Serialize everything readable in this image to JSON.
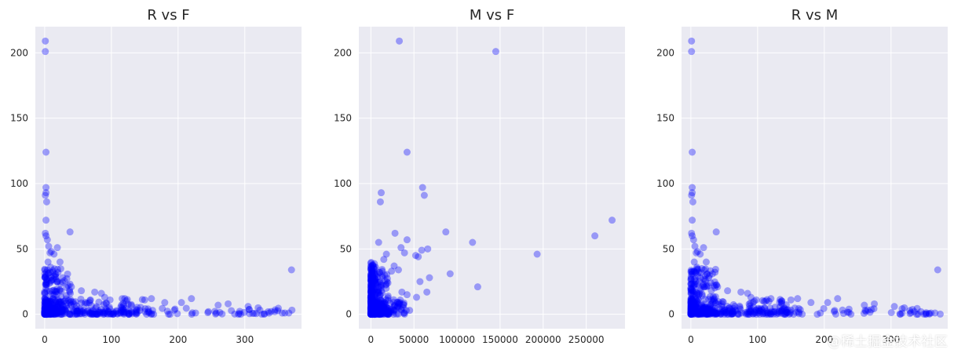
{
  "colors": {
    "plot_bg": "#eaeaf2",
    "grid": "#ffffff",
    "marker": "#0000ff",
    "text": "#262626"
  },
  "watermark": "@稀土掘金技术社区",
  "chart_data": [
    {
      "type": "scatter",
      "title": "R vs F",
      "xlabel": "",
      "ylabel": "",
      "xlim": [
        -14,
        385
      ],
      "ylim": [
        -11,
        220
      ],
      "xticks": [
        0,
        100,
        200,
        300
      ],
      "yticks": [
        0,
        50,
        100,
        150,
        200
      ],
      "grid": true,
      "points": [
        [
          1,
          209
        ],
        [
          1,
          201
        ],
        [
          2,
          124
        ],
        [
          2,
          97
        ],
        [
          2,
          93
        ],
        [
          1,
          91
        ],
        [
          3,
          86
        ],
        [
          2,
          72
        ],
        [
          1,
          62
        ],
        [
          2,
          60
        ],
        [
          4,
          57
        ],
        [
          6,
          52
        ],
        [
          38,
          63
        ],
        [
          19,
          51
        ],
        [
          10,
          48
        ],
        [
          14,
          46
        ],
        [
          8,
          47
        ],
        [
          23,
          40
        ],
        [
          5,
          40
        ],
        [
          9,
          36
        ],
        [
          12,
          32
        ],
        [
          27,
          28
        ],
        [
          35,
          22
        ],
        [
          40,
          21
        ],
        [
          55,
          18
        ],
        [
          75,
          17
        ],
        [
          85,
          16
        ],
        [
          90,
          13
        ],
        [
          98,
          11
        ],
        [
          120,
          12
        ],
        [
          150,
          11
        ],
        [
          160,
          12
        ],
        [
          180,
          9
        ],
        [
          205,
          9
        ],
        [
          220,
          12
        ],
        [
          260,
          7
        ],
        [
          275,
          8
        ],
        [
          305,
          6
        ],
        [
          320,
          5
        ],
        [
          335,
          2
        ],
        [
          345,
          2
        ],
        [
          360,
          1
        ],
        [
          366,
          1
        ],
        [
          370,
          34
        ]
      ],
      "dense_bands": [
        {
          "x": [
            0,
            40
          ],
          "y": [
            0,
            35
          ]
        },
        {
          "x": [
            0,
            150
          ],
          "y": [
            0,
            12
          ]
        },
        {
          "x": [
            0,
            374
          ],
          "y": [
            0,
            5
          ]
        }
      ]
    },
    {
      "type": "scatter",
      "title": "M vs F",
      "xlabel": "",
      "ylabel": "",
      "xlim": [
        -14000,
        295000
      ],
      "ylim": [
        -11,
        220
      ],
      "xticks": [
        0,
        50000,
        100000,
        150000,
        200000,
        250000
      ],
      "yticks": [
        0,
        50,
        100,
        150,
        200
      ],
      "grid": true,
      "points": [
        [
          33000,
          209
        ],
        [
          145000,
          201
        ],
        [
          42000,
          124
        ],
        [
          60000,
          97
        ],
        [
          62000,
          91
        ],
        [
          12000,
          93
        ],
        [
          11000,
          86
        ],
        [
          280000,
          72
        ],
        [
          260000,
          60
        ],
        [
          87000,
          63
        ],
        [
          28000,
          62
        ],
        [
          42000,
          57
        ],
        [
          9000,
          55
        ],
        [
          118000,
          55
        ],
        [
          35000,
          51
        ],
        [
          59000,
          49
        ],
        [
          66000,
          50
        ],
        [
          39000,
          47
        ],
        [
          52000,
          45
        ],
        [
          193000,
          46
        ],
        [
          18000,
          46
        ],
        [
          55000,
          44
        ],
        [
          15000,
          42
        ],
        [
          0,
          39
        ],
        [
          32000,
          34
        ],
        [
          24000,
          33
        ],
        [
          27000,
          37
        ],
        [
          68000,
          28
        ],
        [
          57000,
          25
        ],
        [
          92000,
          31
        ],
        [
          124000,
          21
        ],
        [
          36000,
          17
        ],
        [
          65000,
          17
        ],
        [
          20000,
          14
        ],
        [
          42000,
          15
        ],
        [
          53000,
          13
        ],
        [
          41000,
          3
        ],
        [
          45000,
          3
        ],
        [
          5000,
          20
        ],
        [
          8000,
          18
        ],
        [
          3000,
          10
        ],
        [
          2000,
          5
        ],
        [
          12000,
          8
        ],
        [
          16000,
          30
        ],
        [
          18000,
          23
        ]
      ],
      "dense_bands": [
        {
          "x": [
            0,
            6000
          ],
          "y": [
            0,
            40
          ]
        },
        {
          "x": [
            0,
            20000
          ],
          "y": [
            0,
            35
          ]
        },
        {
          "x": [
            0,
            40000
          ],
          "y": [
            0,
            12
          ]
        }
      ]
    },
    {
      "type": "scatter",
      "title": "R vs M",
      "xlabel": "",
      "ylabel": "",
      "xlim": [
        -14,
        385
      ],
      "ylim": [
        -11,
        220
      ],
      "xticks": [
        0,
        100,
        200,
        300
      ],
      "yticks": [
        0,
        50,
        100,
        150,
        200
      ],
      "grid": true,
      "points": [
        [
          1,
          209
        ],
        [
          1,
          201
        ],
        [
          2,
          124
        ],
        [
          2,
          97
        ],
        [
          2,
          93
        ],
        [
          1,
          91
        ],
        [
          3,
          86
        ],
        [
          2,
          72
        ],
        [
          1,
          62
        ],
        [
          2,
          60
        ],
        [
          4,
          57
        ],
        [
          6,
          52
        ],
        [
          38,
          63
        ],
        [
          19,
          51
        ],
        [
          10,
          48
        ],
        [
          14,
          46
        ],
        [
          8,
          47
        ],
        [
          23,
          40
        ],
        [
          5,
          40
        ],
        [
          9,
          36
        ],
        [
          12,
          32
        ],
        [
          27,
          28
        ],
        [
          35,
          22
        ],
        [
          40,
          21
        ],
        [
          55,
          18
        ],
        [
          75,
          17
        ],
        [
          85,
          16
        ],
        [
          90,
          13
        ],
        [
          98,
          11
        ],
        [
          120,
          12
        ],
        [
          150,
          11
        ],
        [
          160,
          12
        ],
        [
          180,
          9
        ],
        [
          205,
          9
        ],
        [
          220,
          12
        ],
        [
          260,
          7
        ],
        [
          275,
          8
        ],
        [
          305,
          6
        ],
        [
          320,
          5
        ],
        [
          335,
          2
        ],
        [
          345,
          2
        ],
        [
          360,
          1
        ],
        [
          366,
          1
        ],
        [
          370,
          34
        ]
      ],
      "dense_bands": [
        {
          "x": [
            0,
            40
          ],
          "y": [
            0,
            35
          ]
        },
        {
          "x": [
            0,
            150
          ],
          "y": [
            0,
            12
          ]
        },
        {
          "x": [
            0,
            374
          ],
          "y": [
            0,
            5
          ]
        }
      ]
    }
  ]
}
